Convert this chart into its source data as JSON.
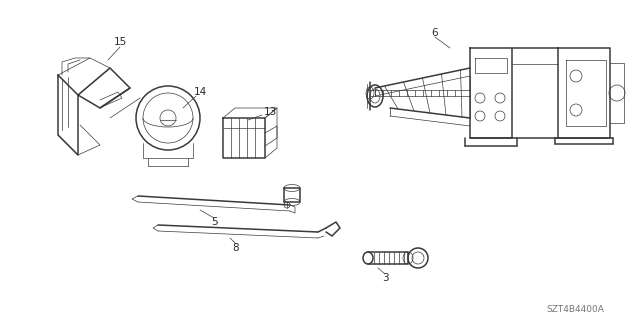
{
  "background_color": "#ffffff",
  "line_color": "#3a3a3a",
  "text_color": "#2a2a2a",
  "watermark": "SZT4B4400A",
  "lw_main": 0.85,
  "lw_thin": 0.5,
  "lw_thick": 1.1
}
